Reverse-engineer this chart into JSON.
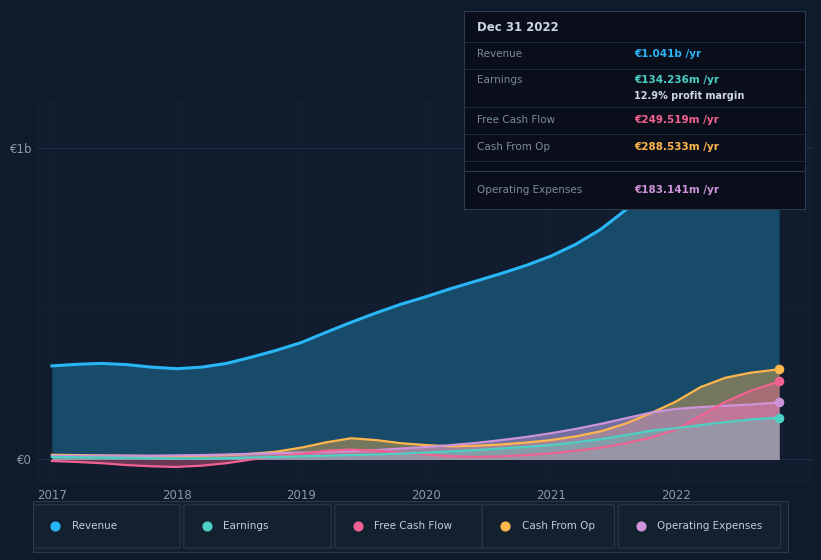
{
  "background_color": "#0d1b2a",
  "plot_bg_color": "#111d2e",
  "grid_color": "#1e3048",
  "text_color": "#8899aa",
  "x_years": [
    2017.0,
    2017.2,
    2017.4,
    2017.6,
    2017.8,
    2018.0,
    2018.2,
    2018.4,
    2018.6,
    2018.8,
    2019.0,
    2019.2,
    2019.4,
    2019.6,
    2019.8,
    2020.0,
    2020.2,
    2020.4,
    2020.6,
    2020.8,
    2021.0,
    2021.2,
    2021.4,
    2021.6,
    2021.8,
    2022.0,
    2022.2,
    2022.4,
    2022.6,
    2022.83
  ],
  "revenue": [
    300,
    305,
    308,
    304,
    296,
    291,
    296,
    308,
    328,
    350,
    375,
    408,
    440,
    470,
    498,
    522,
    548,
    572,
    596,
    622,
    652,
    690,
    738,
    800,
    858,
    900,
    944,
    980,
    1012,
    1041
  ],
  "earnings": [
    8,
    7,
    6,
    5,
    4,
    3,
    3,
    4,
    6,
    8,
    10,
    12,
    14,
    16,
    19,
    22,
    26,
    30,
    35,
    40,
    46,
    55,
    65,
    78,
    92,
    100,
    110,
    120,
    128,
    134
  ],
  "free_cash_flow": [
    -5,
    -8,
    -12,
    -18,
    -22,
    -24,
    -20,
    -12,
    0,
    10,
    18,
    28,
    32,
    28,
    22,
    16,
    10,
    8,
    10,
    14,
    20,
    28,
    38,
    52,
    70,
    95,
    140,
    185,
    220,
    250
  ],
  "cash_from_op": [
    15,
    14,
    13,
    12,
    11,
    11,
    12,
    14,
    18,
    25,
    38,
    55,
    68,
    62,
    52,
    46,
    42,
    44,
    48,
    54,
    62,
    74,
    90,
    115,
    148,
    185,
    232,
    262,
    278,
    289
  ],
  "operating_expenses": [
    12,
    12,
    12,
    12,
    12,
    13,
    14,
    16,
    18,
    20,
    22,
    24,
    26,
    30,
    35,
    40,
    46,
    53,
    62,
    72,
    84,
    98,
    114,
    132,
    150,
    162,
    168,
    172,
    176,
    183
  ],
  "revenue_color": "#29b6f6",
  "earnings_color": "#4dd0c4",
  "free_cash_flow_color": "#f06292",
  "cash_from_op_color": "#ffb74d",
  "operating_expenses_color": "#ce93d8",
  "ylim_low": -80,
  "ylim_high": 1150,
  "xlim_low": 2016.88,
  "xlim_high": 2023.1,
  "ytick_positions": [
    0,
    1000
  ],
  "ytick_labels": [
    "€0",
    "€1b"
  ],
  "xtick_positions": [
    2017,
    2018,
    2019,
    2020,
    2021,
    2022
  ],
  "xtick_labels": [
    "2017",
    "2018",
    "2019",
    "2020",
    "2021",
    "2022"
  ],
  "tooltip_label_col": 0.04,
  "tooltip_value_col": 0.5,
  "legend_labels": [
    "Revenue",
    "Earnings",
    "Free Cash Flow",
    "Cash From Op",
    "Operating Expenses"
  ],
  "legend_colors": [
    "#29b6f6",
    "#4dd0c4",
    "#f06292",
    "#ffb74d",
    "#ce93d8"
  ],
  "legend_bg": "#13202e",
  "legend_border": "#2a3a50"
}
